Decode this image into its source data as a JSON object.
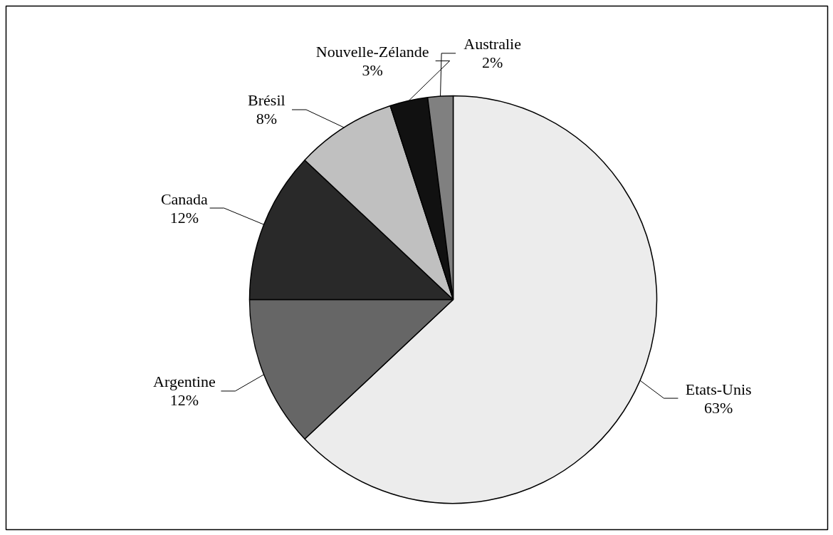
{
  "chart_data": {
    "type": "pie",
    "categories": [
      "Etats-Unis",
      "Argentine",
      "Canada",
      "Brésil",
      "Nouvelle-Zélande",
      "Australie"
    ],
    "values": [
      63,
      12,
      12,
      8,
      3,
      2
    ],
    "colors": [
      "#ececec",
      "#666666",
      "#292929",
      "#c0c0c0",
      "#111111",
      "#808080"
    ],
    "value_labels": [
      "63%",
      "12%",
      "12%",
      "8%",
      "3%",
      "2%"
    ]
  }
}
